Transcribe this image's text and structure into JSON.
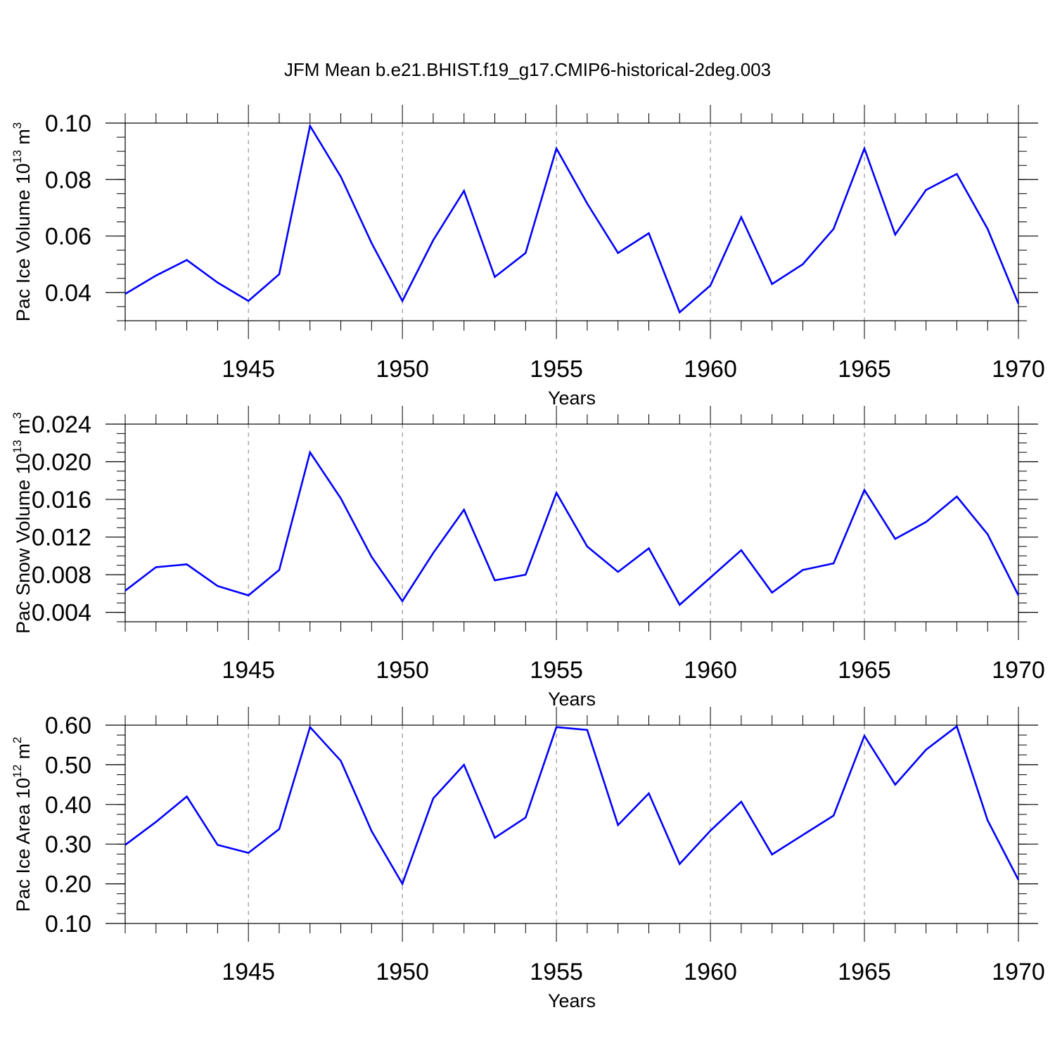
{
  "title": "JFM Mean b.e21.BHIST.f19_g17.CMIP6-historical-2deg.003",
  "colors": {
    "line": "#0000ff",
    "axis": "#000000",
    "grid": "#808080"
  },
  "chart_data": [
    {
      "type": "line",
      "ylabel": {
        "base": "Pac Ice Volume 10",
        "exp": "13",
        "unit": " m",
        "unit_exp": "3"
      },
      "xlabel": "Years",
      "xlim": [
        1941,
        1970
      ],
      "xticks": [
        1945,
        1950,
        1955,
        1960,
        1965,
        1970
      ],
      "ylim": [
        0.03,
        0.1
      ],
      "yticks": [
        0.04,
        0.06,
        0.08,
        0.1
      ],
      "ytick_labels": [
        "0.04",
        "0.06",
        "0.08",
        "0.10"
      ],
      "y_minor_step": 0.005,
      "grid": "x-dashed",
      "x": [
        1941,
        1942,
        1943,
        1944,
        1945,
        1946,
        1947,
        1948,
        1949,
        1950,
        1951,
        1952,
        1953,
        1954,
        1955,
        1956,
        1957,
        1958,
        1959,
        1960,
        1961,
        1962,
        1963,
        1964,
        1965,
        1966,
        1967,
        1968,
        1969,
        1970
      ],
      "values": [
        0.0395,
        0.046,
        0.0515,
        0.0435,
        0.037,
        0.0465,
        0.099,
        0.081,
        0.0575,
        0.037,
        0.0585,
        0.076,
        0.0455,
        0.054,
        0.091,
        0.0715,
        0.054,
        0.061,
        0.033,
        0.0425,
        0.0667,
        0.043,
        0.05,
        0.0625,
        0.091,
        0.0605,
        0.0763,
        0.082,
        0.0625,
        0.036
      ]
    },
    {
      "type": "line",
      "ylabel": {
        "base": "Pac Snow Volume 10",
        "exp": "13",
        "unit": " m",
        "unit_exp": "3"
      },
      "xlabel": "Years",
      "xlim": [
        1941,
        1970
      ],
      "xticks": [
        1945,
        1950,
        1955,
        1960,
        1965,
        1970
      ],
      "ylim": [
        0.003,
        0.024
      ],
      "yticks": [
        0.004,
        0.008,
        0.012,
        0.016,
        0.02,
        0.024
      ],
      "ytick_labels": [
        "0.004",
        "0.008",
        "0.012",
        "0.016",
        "0.020",
        "0.024"
      ],
      "y_minor_step": 0.001,
      "grid": "x-dashed",
      "x": [
        1941,
        1942,
        1943,
        1944,
        1945,
        1946,
        1947,
        1948,
        1949,
        1950,
        1951,
        1952,
        1953,
        1954,
        1955,
        1956,
        1957,
        1958,
        1959,
        1960,
        1961,
        1962,
        1963,
        1964,
        1965,
        1966,
        1967,
        1968,
        1969,
        1970
      ],
      "values": [
        0.0063,
        0.0088,
        0.0091,
        0.0068,
        0.0058,
        0.0085,
        0.021,
        0.0161,
        0.0099,
        0.0052,
        0.0103,
        0.0149,
        0.0074,
        0.008,
        0.0167,
        0.011,
        0.0083,
        0.0108,
        0.0048,
        0.0077,
        0.0106,
        0.0061,
        0.0085,
        0.0092,
        0.017,
        0.0118,
        0.0136,
        0.0163,
        0.0123,
        0.0058
      ]
    },
    {
      "type": "line",
      "ylabel": {
        "base": "Pac Ice Area 10",
        "exp": "12",
        "unit": " m",
        "unit_exp": "2"
      },
      "xlabel": "Years",
      "xlim": [
        1941,
        1970
      ],
      "xticks": [
        1945,
        1950,
        1955,
        1960,
        1965,
        1970
      ],
      "ylim": [
        0.1,
        0.6
      ],
      "yticks": [
        0.1,
        0.2,
        0.3,
        0.4,
        0.5,
        0.6
      ],
      "ytick_labels": [
        "0.10",
        "0.20",
        "0.30",
        "0.40",
        "0.50",
        "0.60"
      ],
      "y_minor_step": 0.025,
      "grid": "x-dashed",
      "x": [
        1941,
        1942,
        1943,
        1944,
        1945,
        1946,
        1947,
        1948,
        1949,
        1950,
        1951,
        1952,
        1953,
        1954,
        1955,
        1956,
        1957,
        1958,
        1959,
        1960,
        1961,
        1962,
        1963,
        1964,
        1965,
        1966,
        1967,
        1968,
        1969,
        1970
      ],
      "values": [
        0.298,
        0.356,
        0.42,
        0.298,
        0.278,
        0.338,
        0.595,
        0.51,
        0.333,
        0.2,
        0.415,
        0.5,
        0.316,
        0.367,
        0.595,
        0.588,
        0.348,
        0.428,
        0.25,
        0.334,
        0.407,
        0.274,
        0.323,
        0.372,
        0.573,
        0.45,
        0.538,
        0.597,
        0.36,
        0.21
      ]
    }
  ]
}
